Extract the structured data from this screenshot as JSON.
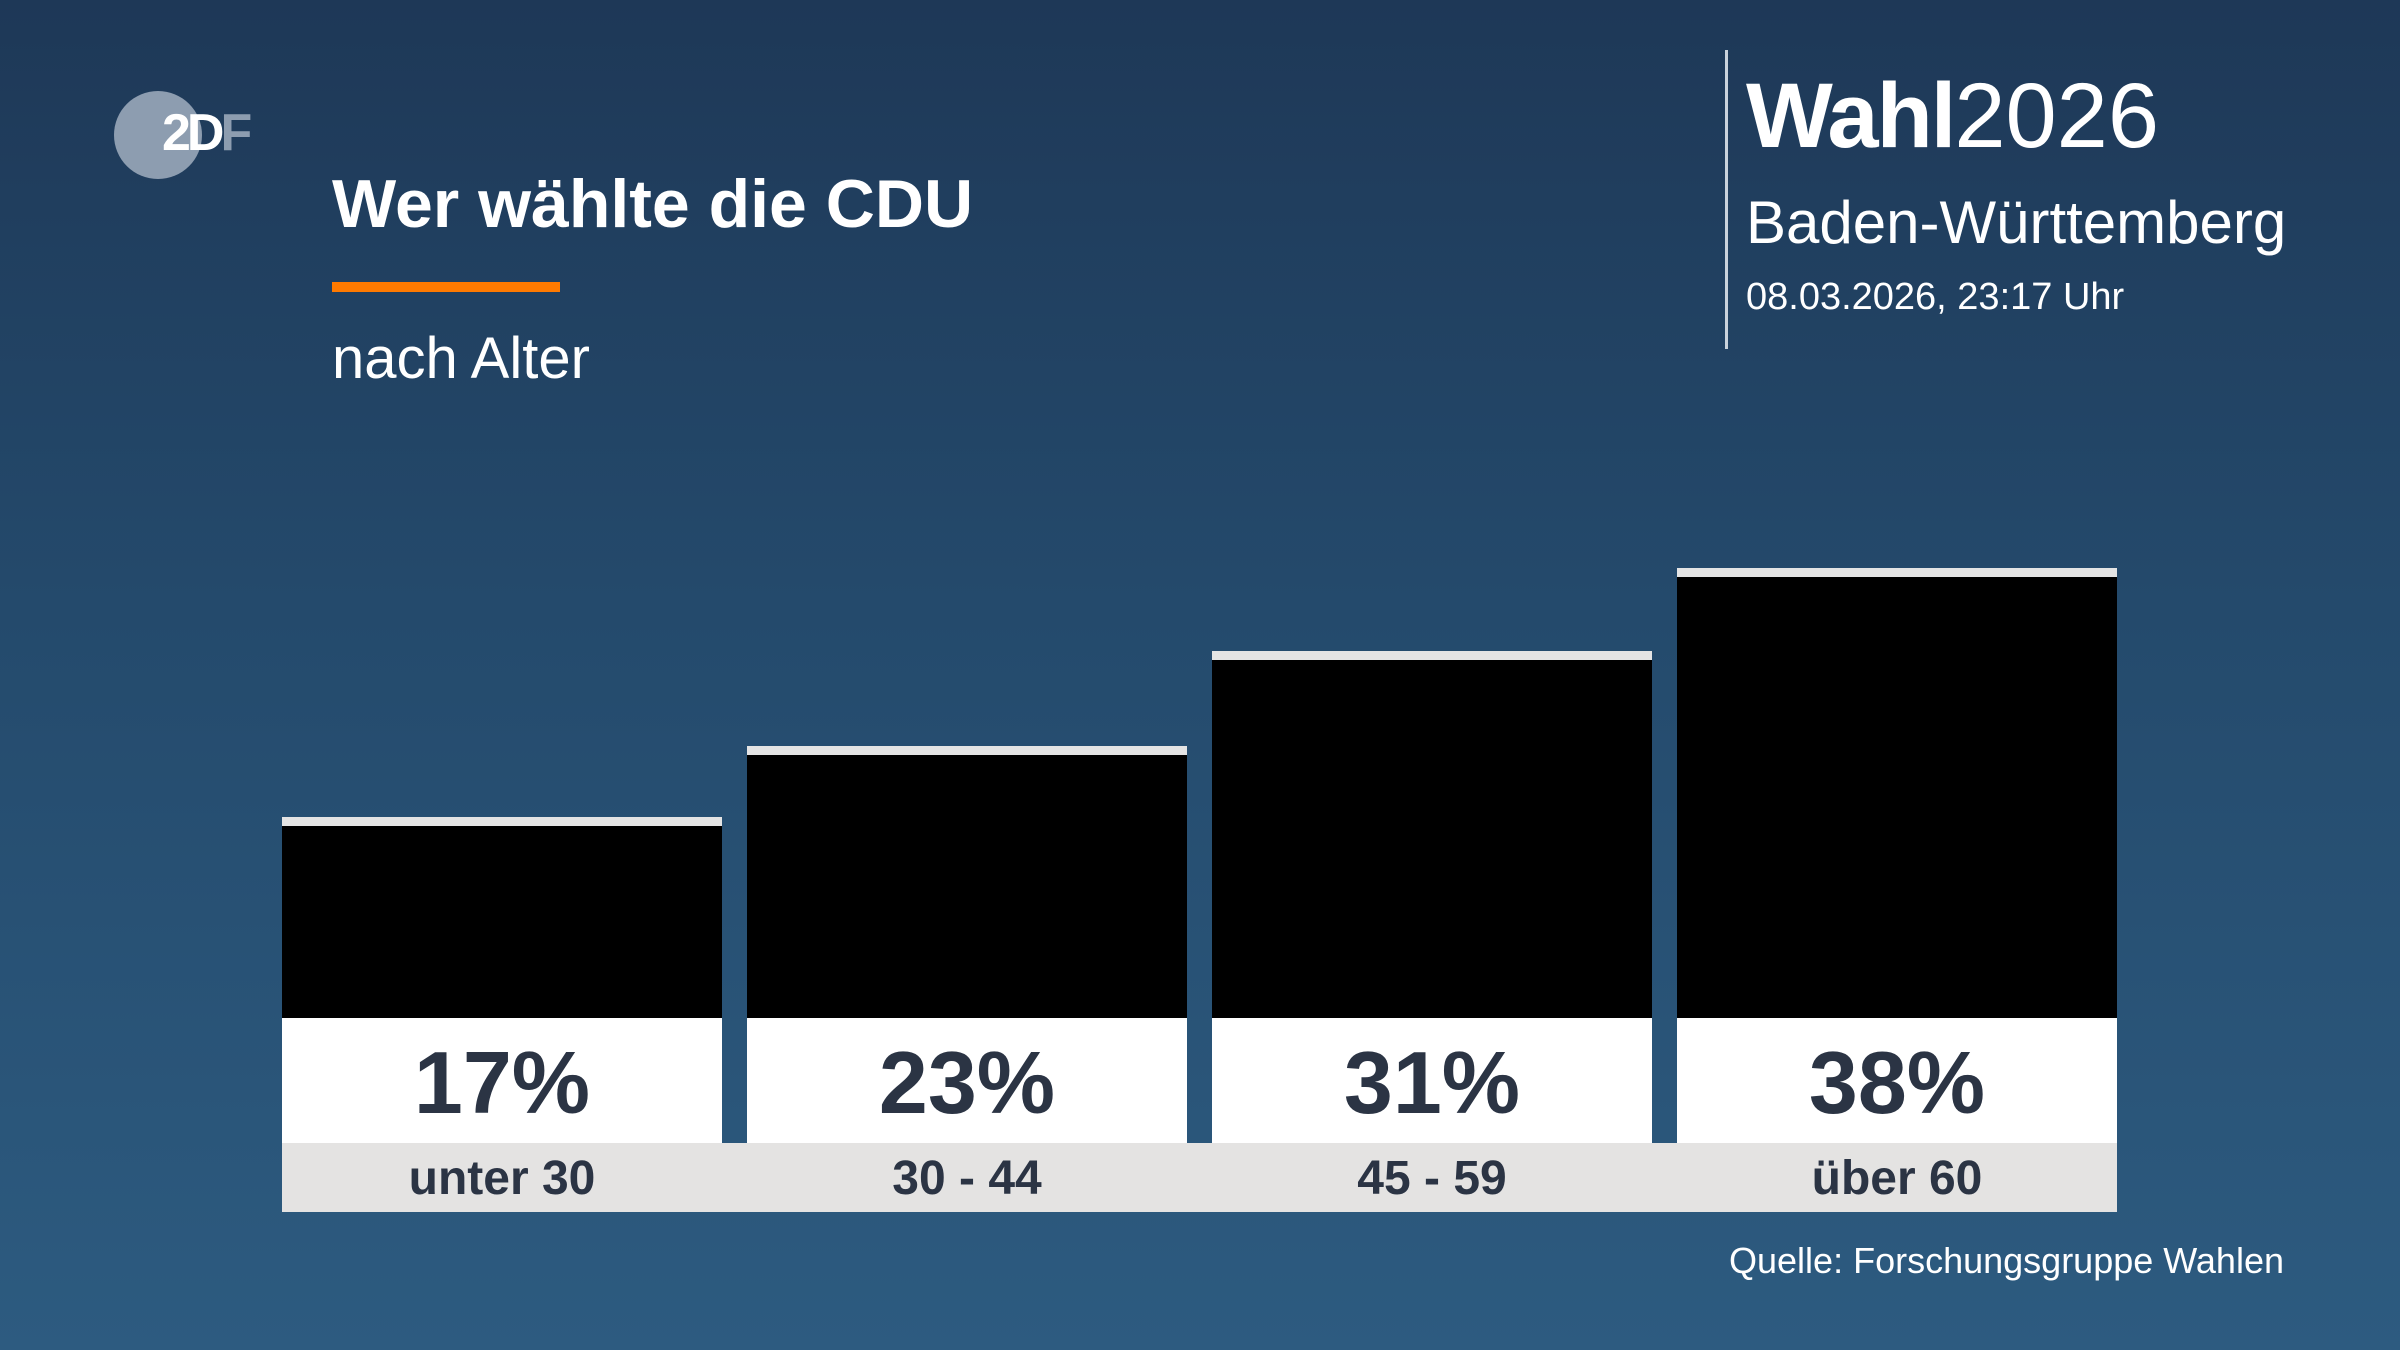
{
  "logo": {
    "text": "ZDF"
  },
  "header": {
    "title": "Wer wählte die CDU",
    "subtitle": "nach Alter",
    "accent_color": "#ff7a00"
  },
  "brand": {
    "wahl": "Wahl",
    "year": "2026",
    "region": "Baden-Württemberg",
    "datetime": "08.03.2026, 23:17 Uhr"
  },
  "source": "Quelle: Forschungsgruppe Wahlen",
  "chart_data": {
    "type": "bar",
    "title": "Wer wählte die CDU",
    "subtitle": "nach Alter",
    "categories": [
      "unter 30",
      "30 - 44",
      "45 - 59",
      "über 60"
    ],
    "values": [
      17,
      23,
      31,
      38
    ],
    "value_labels": [
      "17%",
      "23%",
      "31%",
      "38%"
    ],
    "unit": "%",
    "bar_color": "#000000",
    "grid": false
  }
}
